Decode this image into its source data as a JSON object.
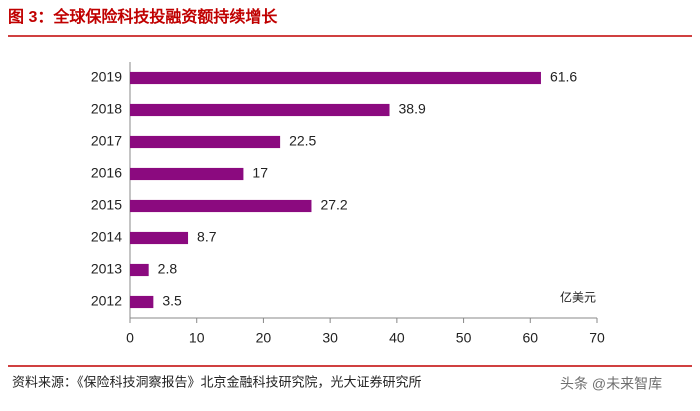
{
  "chart_data": {
    "type": "barh",
    "title": "图 3：全球保险科技投融资额持续增长",
    "unit_label": "亿美元",
    "categories": [
      "2019",
      "2018",
      "2017",
      "2016",
      "2015",
      "2014",
      "2013",
      "2012"
    ],
    "values": [
      61.6,
      38.9,
      22.5,
      17,
      27.2,
      8.7,
      2.8,
      3.5
    ],
    "color": "#8b0a7f",
    "xlim": [
      0,
      70
    ],
    "xticks": [
      0,
      10,
      20,
      30,
      40,
      50,
      60,
      70
    ],
    "source": "资料来源：《保险科技洞察报告》北京金融科技研究院，光大证券研究所",
    "watermark": "头条 @未来智库"
  }
}
